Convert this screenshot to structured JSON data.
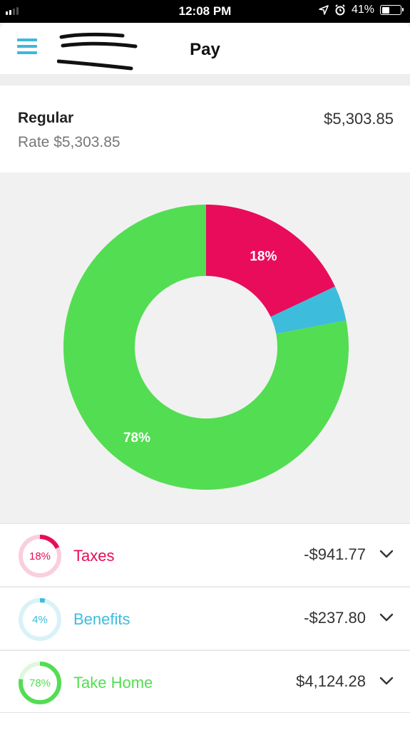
{
  "status_bar": {
    "time": "12:08 PM",
    "battery_pct": "41%",
    "battery_level": 0.41
  },
  "header": {
    "title": "Pay",
    "menu_icon": "hamburger-menu-icon"
  },
  "regular": {
    "label": "Regular",
    "rate": "Rate $5,303.85",
    "amount": "$5,303.85"
  },
  "colors": {
    "taxes": "#e80c5a",
    "benefits": "#3ebcdc",
    "take_home": "#53dd52"
  },
  "chart_data": {
    "type": "pie",
    "donut": true,
    "categories": [
      "Taxes",
      "Benefits",
      "Take Home"
    ],
    "values": [
      18,
      4,
      78
    ],
    "labels": [
      "18%",
      "",
      "78%"
    ]
  },
  "breakdown": [
    {
      "key": "taxes",
      "percent_label": "18%",
      "percent": 18,
      "label": "Taxes",
      "amount": "-$941.77"
    },
    {
      "key": "benefits",
      "percent_label": "4%",
      "percent": 4,
      "label": "Benefits",
      "amount": "-$237.80"
    },
    {
      "key": "take_home",
      "percent_label": "78%",
      "percent": 78,
      "label": "Take Home",
      "amount": "$4,124.28"
    }
  ]
}
